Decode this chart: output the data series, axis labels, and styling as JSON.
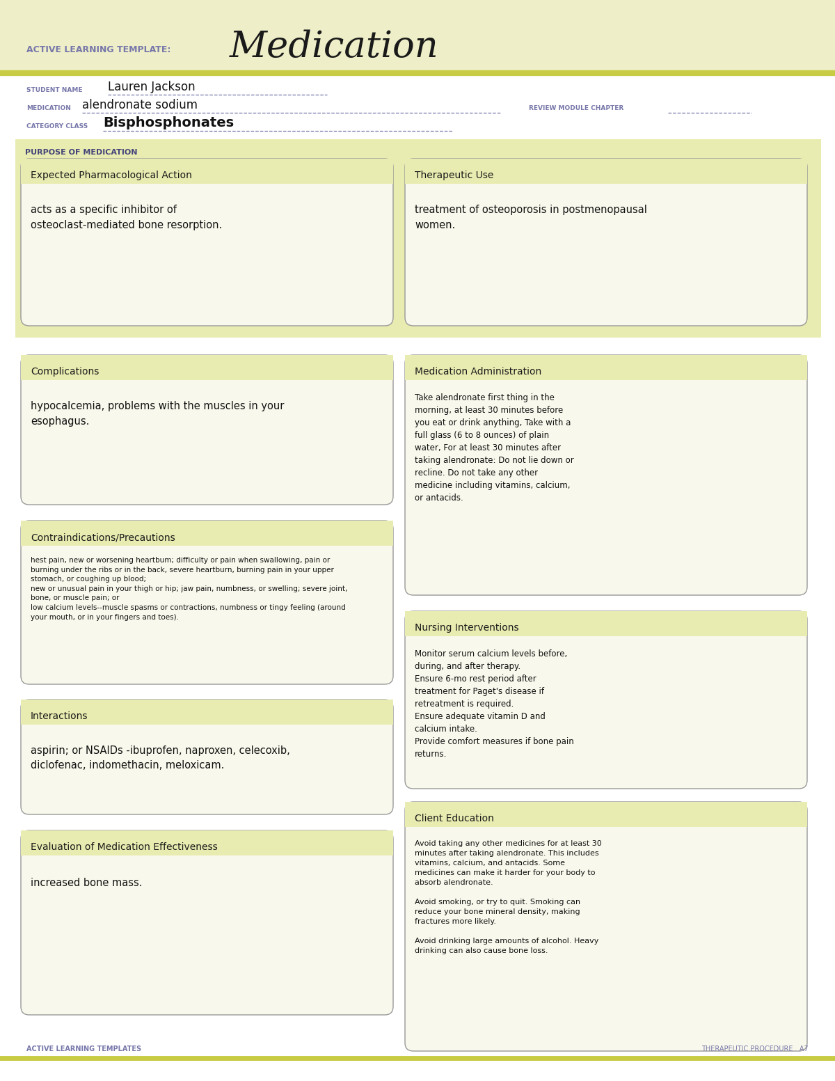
{
  "bg_color": "#ffffff",
  "header_bg": "#eeefc8",
  "header_line_color": "#c8cc44",
  "title_label": "ACTIVE LEARNING TEMPLATE:",
  "title_main": "Medication",
  "title_label_color": "#7777aa",
  "title_main_color": "#1a1a1a",
  "student_name_label": "STUDENT NAME",
  "student_name": "Lauren Jackson",
  "medication_label": "MEDICATION",
  "medication": "alendronate sodium",
  "review_label": "REVIEW MODULE CHAPTER",
  "category_label": "CATEGORY CLASS",
  "category": "Bisphosphonates",
  "label_color": "#7777aa",
  "section_bg": "#e8ecb0",
  "box_bg": "#f8f8ec",
  "box_border": "#999999",
  "purpose_label": "PURPOSE OF MEDICATION",
  "purpose_label_color": "#44447a",
  "box_title_color": "#1a1a1a",
  "box_text_color": "#111111",
  "underline_color": "#7777aa",
  "footer_text_left": "ACTIVE LEARNING TEMPLATES",
  "footer_text_right": "THERAPEUTIC PROCEDURE   A7",
  "footer_color": "#7777aa",
  "sections": {
    "expected_pharm_title": "Expected Pharmacological Action",
    "expected_pharm_text": "acts as a specific inhibitor of\nosteoclast-mediated bone resorption.",
    "therapeutic_use_title": "Therapeutic Use",
    "therapeutic_use_text": "treatment of osteoporosis in postmenopausal\nwomen.",
    "complications_title": "Complications",
    "complications_text": "hypocalcemia, problems with the muscles in your\nesophagus.",
    "med_admin_title": "Medication Administration",
    "med_admin_text": "Take alendronate first thing in the\nmorning, at least 30 minutes before\nyou eat or drink anything, Take with a\nfull glass (6 to 8 ounces) of plain\nwater, For at least 30 minutes after\ntaking alendronate: Do not lie down or\nrecline. Do not take any other\nmedicine including vitamins, calcium,\nor antacids.",
    "contraindications_title": "Contraindications/Precautions",
    "contraindications_text": "hest pain, new or worsening heartbum; difficulty or pain when swallowing, pain or\nburning under the ribs or in the back, severe heartburn, burning pain in your upper\nstomach, or coughing up blood;\nnew or unusual pain in your thigh or hip; jaw pain, numbness, or swelling; severe joint,\nbone, or muscle pain; or\nlow calcium levels--muscle spasms or contractions, numbness or tingy feeling (around\nyour mouth, or in your fingers and toes).",
    "nursing_title": "Nursing Interventions",
    "nursing_text": "Monitor serum calcium levels before,\nduring, and after therapy.\nEnsure 6-mo rest period after\ntreatment for Paget's disease if\nretreatment is required.\nEnsure adequate vitamin D and\ncalcium intake.\nProvide comfort measures if bone pain\nreturns.",
    "interactions_title": "Interactions",
    "interactions_text": "aspirin; or NSAIDs -ibuprofen, naproxen, celecoxib,\ndiclofenac, indomethacin, meloxicam.",
    "client_edu_title": "Client Education",
    "client_edu_text": "Avoid taking any other medicines for at least 30\nminutes after taking alendronate. This includes\nvitamins, calcium, and antacids. Some\nmedicines can make it harder for your body to\nabsorb alendronate.\n\nAvoid smoking, or try to quit. Smoking can\nreduce your bone mineral density, making\nfractures more likely.\n\nAvoid drinking large amounts of alcohol. Heavy\ndrinking can also cause bone loss.",
    "eval_title": "Evaluation of Medication Effectiveness",
    "eval_text": "increased bone mass."
  }
}
